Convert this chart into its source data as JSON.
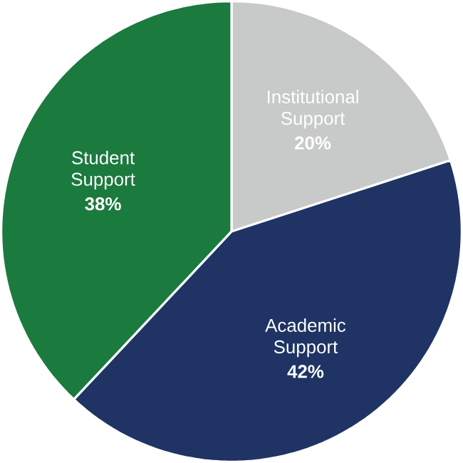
{
  "chart_data": {
    "type": "pie",
    "categories": [
      "Institutional Support",
      "Academic Support",
      "Student Support"
    ],
    "values": [
      20,
      42,
      38
    ],
    "colors": [
      "#c8c9c9",
      "#1f3464",
      "#1b7a3e"
    ],
    "value_labels": [
      "20%",
      "42%",
      "38%"
    ]
  }
}
